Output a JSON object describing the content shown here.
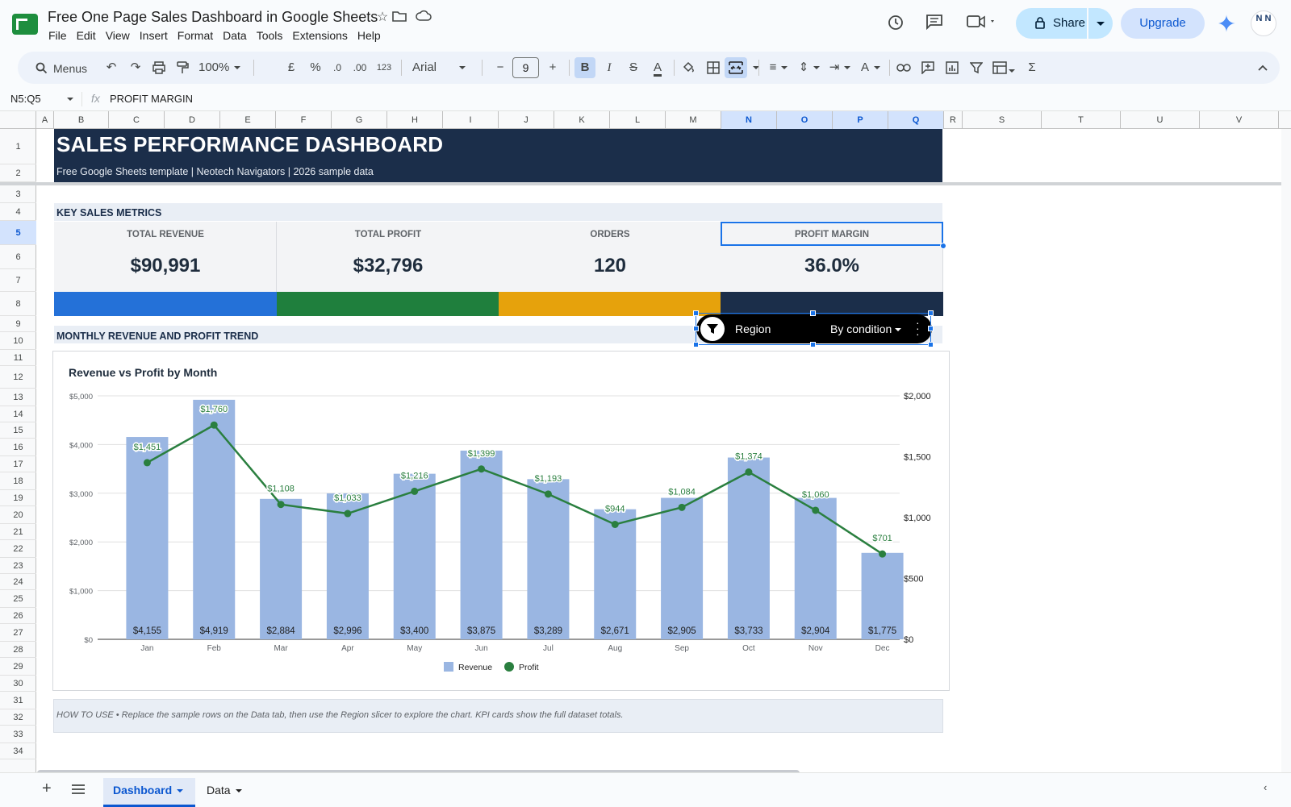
{
  "app": {
    "doc_title": "Free One Page Sales Dashboard in Google Sheets",
    "menu": [
      "File",
      "Edit",
      "View",
      "Insert",
      "Format",
      "Data",
      "Tools",
      "Extensions",
      "Help"
    ],
    "share_label": "Share",
    "upgrade_label": "Upgrade",
    "avatar_text": "N N"
  },
  "toolbar": {
    "search_label": "Menus",
    "zoom": "100%",
    "currency": "£",
    "percent": "%",
    "dec_decrease": ".0",
    "dec_increase": ".00",
    "number_format": "123",
    "font": "Arial",
    "font_size": "9",
    "bold": "B",
    "italic": "I"
  },
  "formula_bar": {
    "name_box": "N5:Q5",
    "fx": "fx",
    "value": "PROFIT MARGIN"
  },
  "columns": [
    "A",
    "B",
    "C",
    "D",
    "E",
    "F",
    "G",
    "H",
    "I",
    "J",
    "K",
    "L",
    "M",
    "N",
    "O",
    "P",
    "Q",
    "R",
    "S",
    "T",
    "U",
    "V"
  ],
  "selected_columns": [
    "N",
    "O",
    "P",
    "Q"
  ],
  "rows": [
    "1",
    "2",
    "3",
    "4",
    "5",
    "6",
    "7",
    "8",
    "9",
    "10",
    "11",
    "12",
    "13",
    "14",
    "15",
    "16",
    "17",
    "18",
    "19",
    "20",
    "21",
    "22",
    "23",
    "24",
    "25",
    "26",
    "27",
    "28",
    "29",
    "30",
    "31",
    "32",
    "33",
    "34"
  ],
  "selected_row": "5",
  "dashboard": {
    "title": "SALES PERFORMANCE DASHBOARD",
    "subtitle": "Free Google Sheets template  |  Neotech Navigators  |  2026 sample data",
    "section_metrics": "KEY SALES METRICS",
    "section_trend": "MONTHLY REVENUE AND PROFIT TREND",
    "kpis": [
      {
        "label": "TOTAL REVENUE",
        "value": "$90,991",
        "color": "#2471d8"
      },
      {
        "label": "TOTAL PROFIT",
        "value": "$32,796",
        "color": "#1f7f3d"
      },
      {
        "label": "ORDERS",
        "value": "120",
        "color": "#e6a20c"
      },
      {
        "label": "PROFIT MARGIN",
        "value": "36.0%",
        "color": "#1b2e4a"
      }
    ],
    "howto": "HOW TO USE  •  Replace the sample rows on the Data tab, then use the Region slicer to explore the chart. KPI cards show the full dataset totals."
  },
  "slicer": {
    "label": "Region",
    "condition": "By condition"
  },
  "chart_data": {
    "type": "bar",
    "title": "Revenue vs Profit by Month",
    "categories": [
      "Jan",
      "Feb",
      "Mar",
      "Apr",
      "May",
      "Jun",
      "Jul",
      "Aug",
      "Sep",
      "Oct",
      "Nov",
      "Dec"
    ],
    "series": [
      {
        "name": "Revenue",
        "type": "bar",
        "axis": "left",
        "color": "#9ab6e2",
        "values": [
          4155,
          4919,
          2884,
          2996,
          3400,
          3875,
          3289,
          2671,
          2905,
          3733,
          2904,
          1775
        ],
        "labels": [
          "$4,155",
          "$4,919",
          "$2,884",
          "$2,996",
          "$3,400",
          "$3,875",
          "$3,289",
          "$2,671",
          "$2,905",
          "$3,733",
          "$2,904",
          "$1,775"
        ]
      },
      {
        "name": "Profit",
        "type": "line",
        "axis": "right",
        "color": "#2a7f3f",
        "values": [
          1451,
          1760,
          1108,
          1033,
          1216,
          1399,
          1193,
          944,
          1084,
          1374,
          1060,
          701
        ],
        "labels": [
          "$1,451",
          "$1,760",
          "$1,108",
          "$1,033",
          "$1,216",
          "$1,399",
          "$1,193",
          "$944",
          "$1,084",
          "$1,374",
          "$1,060",
          "$701"
        ]
      }
    ],
    "y_left": {
      "min": 0,
      "max": 5000,
      "ticks": [
        0,
        1000,
        2000,
        3000,
        4000,
        5000
      ],
      "tick_labels": [
        "$0",
        "$1,000",
        "$2,000",
        "$3,000",
        "$4,000",
        "$5,000"
      ]
    },
    "y_right": {
      "min": 0,
      "max": 2000,
      "ticks": [
        0,
        500,
        1000,
        1500,
        2000
      ],
      "tick_labels": [
        "$0",
        "$500",
        "$1,000",
        "$1,500",
        "$2,000"
      ]
    },
    "legend_position": "bottom",
    "grid": true
  },
  "sheets": [
    {
      "name": "Dashboard",
      "active": true
    },
    {
      "name": "Data",
      "active": false
    }
  ]
}
